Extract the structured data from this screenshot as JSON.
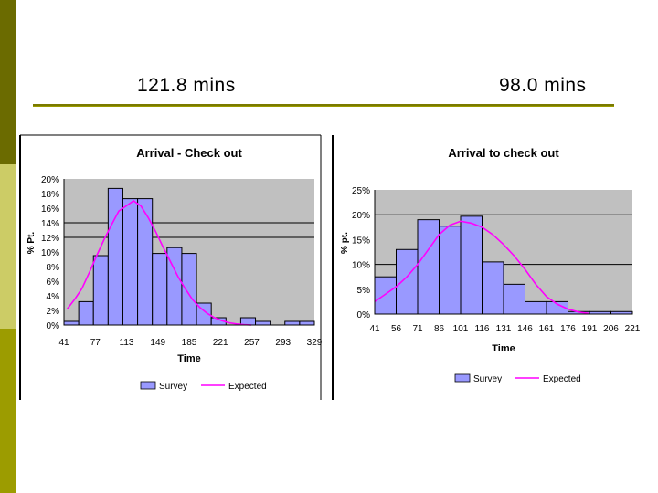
{
  "page": {
    "left_heading": "121.8 mins",
    "right_heading": "98.0 mins",
    "accent_dark": "#6b6b00",
    "accent_light": "#cccc66"
  },
  "chart_data": [
    {
      "type": "bar",
      "title": "Arrival - Check out",
      "xlabel": "Time",
      "ylabel": "% Pt.",
      "x_tick_labels": [
        "41",
        "77",
        "113",
        "149",
        "185",
        "221",
        "257",
        "293",
        "329"
      ],
      "y_tick_labels": [
        "0%",
        "2%",
        "4%",
        "6%",
        "8%",
        "10%",
        "12%",
        "14%",
        "16%",
        "18%",
        "20%"
      ],
      "ylim": [
        0,
        20
      ],
      "bin_start": 41,
      "bin_width": 18,
      "series": [
        {
          "name": "Survey",
          "kind": "bar",
          "color": "#9999ff",
          "values": [
            0.5,
            3.2,
            9.5,
            18.7,
            17.3,
            17.3,
            9.8,
            10.6,
            9.8,
            3.0,
            1.0,
            0,
            1.0,
            0.5,
            0,
            0.5,
            0.5
          ]
        },
        {
          "name": "Expected",
          "kind": "line",
          "color": "#ff00ff",
          "x": [
            45,
            54,
            63,
            72,
            81,
            90,
            99,
            108,
            117,
            126,
            135,
            144,
            153,
            162,
            171,
            180,
            189,
            198,
            207,
            216,
            225,
            234,
            243,
            252,
            261,
            270
          ],
          "values": [
            2.2,
            3.5,
            5.0,
            7.2,
            9.5,
            11.7,
            13.7,
            15.6,
            16.3,
            17.0,
            16.3,
            14.7,
            12.8,
            10.7,
            8.7,
            6.7,
            5.0,
            3.5,
            2.4,
            1.6,
            1.0,
            0.6,
            0.3,
            0.15,
            0.05,
            0.0
          ]
        }
      ],
      "grid_lines": [
        0,
        12,
        14
      ],
      "legend": [
        "Survey",
        "Expected"
      ],
      "legend_placement": "bottom"
    },
    {
      "type": "bar",
      "title": "Arrival to check out",
      "xlabel": "Time",
      "ylabel": "% pt.",
      "x_tick_labels": [
        "41",
        "56",
        "71",
        "86",
        "101",
        "116",
        "131",
        "146",
        "161",
        "176",
        "191",
        "206",
        "221"
      ],
      "y_tick_labels": [
        "0%",
        "5%",
        "10%",
        "15%",
        "20%",
        "25%"
      ],
      "ylim": [
        0,
        25
      ],
      "bin_start": 41,
      "bin_width": 15,
      "series": [
        {
          "name": "Survey",
          "kind": "bar",
          "color": "#9999ff",
          "values": [
            7.5,
            13.0,
            19.0,
            17.7,
            19.7,
            10.5,
            6.0,
            2.5,
            2.5,
            0.5,
            0.5,
            0.5
          ]
        },
        {
          "name": "Expected",
          "kind": "line",
          "color": "#ff00ff",
          "x": [
            41,
            48.5,
            56,
            63.5,
            71,
            78.5,
            86,
            93.5,
            101,
            108.5,
            116,
            123.5,
            131,
            138.5,
            146,
            153.5,
            161,
            168.5,
            176,
            183.5,
            191
          ],
          "values": [
            2.5,
            4.0,
            5.5,
            7.5,
            10.0,
            13.0,
            16.0,
            17.9,
            18.7,
            18.3,
            17.5,
            16.0,
            14.0,
            11.7,
            9.0,
            6.0,
            3.5,
            2.0,
            1.0,
            0.4,
            0.1
          ]
        }
      ],
      "grid_lines": [
        0,
        10,
        20
      ],
      "legend": [
        "Survey",
        "Expected"
      ],
      "legend_placement": "bottom"
    }
  ]
}
